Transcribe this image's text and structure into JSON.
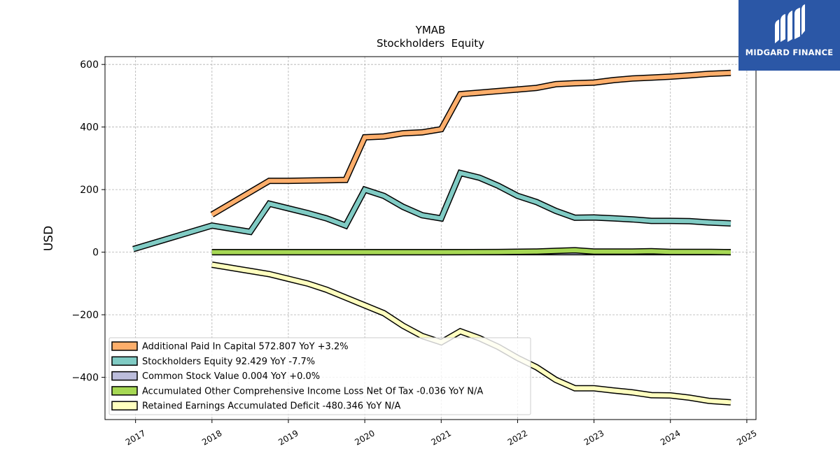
{
  "logo": {
    "text": "MIDGARD FINANCE",
    "color": "#2b57a6"
  },
  "chart_data": {
    "type": "line",
    "title": "YMAB",
    "subtitle": "Stockholders  Equity",
    "ylabel": "USD",
    "xlabel": "",
    "ylim": [
      -535,
      625
    ],
    "xlim": [
      2016.6,
      2025.12
    ],
    "x_ticks": [
      "2017",
      "2018",
      "2019",
      "2020",
      "2021",
      "2022",
      "2023",
      "2024",
      "2025"
    ],
    "y_ticks": [
      "600",
      "400",
      "200",
      "0",
      "−200",
      "−400"
    ],
    "grid": true,
    "legend_position": "lower-left",
    "series": [
      {
        "name": "Additional Paid In Capital  572.807 YoY +3.2%",
        "color": "#fdae6b",
        "x": [
          2018.0,
          2018.75,
          2019.0,
          2019.5,
          2019.75,
          2020.0,
          2020.25,
          2020.5,
          2020.75,
          2021.0,
          2021.25,
          2021.5,
          2021.75,
          2022.0,
          2022.25,
          2022.5,
          2022.75,
          2023.0,
          2023.25,
          2023.5,
          2023.75,
          2024.0,
          2024.25,
          2024.5,
          2024.79
        ],
        "y": [
          120,
          228,
          228,
          230,
          231,
          367,
          370,
          380,
          383,
          393,
          505,
          510,
          515,
          520,
          525,
          537,
          540,
          542,
          550,
          555,
          558,
          561,
          565,
          570,
          573
        ]
      },
      {
        "name": "Stockholders Equity  92.429 YoY -7.7%",
        "color": "#80cbc4",
        "x": [
          2016.97,
          2018.0,
          2018.5,
          2018.75,
          2019.0,
          2019.25,
          2019.5,
          2019.75,
          2020.0,
          2020.25,
          2020.5,
          2020.75,
          2021.0,
          2021.25,
          2021.5,
          2021.75,
          2022.0,
          2022.25,
          2022.5,
          2022.75,
          2023.0,
          2023.25,
          2023.5,
          2023.75,
          2024.0,
          2024.25,
          2024.5,
          2024.79
        ],
        "y": [
          10,
          85,
          65,
          155,
          140,
          125,
          108,
          85,
          200,
          180,
          145,
          118,
          108,
          253,
          238,
          212,
          180,
          160,
          132,
          110,
          111,
          108,
          105,
          100,
          100,
          99,
          95,
          92
        ]
      },
      {
        "name": "Common Stock Value  0.004 YoY +0.0%",
        "color": "#bcbddc",
        "x": [
          2018.0,
          2024.79
        ],
        "y": [
          0.004,
          0.004
        ]
      },
      {
        "name": "Accumulated Other Comprehensive Income Loss Net Of Tax  -0.036 YoY N/A",
        "color": "#a6d854",
        "x": [
          2018.0,
          2019.0,
          2020.0,
          2021.0,
          2021.75,
          2022.25,
          2022.5,
          2022.75,
          2023.0,
          2023.5,
          2023.75,
          2024.0,
          2024.5,
          2024.79
        ],
        "y": [
          0,
          0,
          0,
          0,
          0.5,
          2,
          4,
          6,
          2,
          2,
          3,
          1,
          1,
          0
        ]
      },
      {
        "name": "Retained Earnings Accumulated Deficit  -480.346 YoY N/A",
        "color": "#ffffbf",
        "x": [
          2018.0,
          2018.25,
          2018.5,
          2018.75,
          2019.0,
          2019.25,
          2019.5,
          2019.75,
          2020.0,
          2020.25,
          2020.5,
          2020.75,
          2021.0,
          2021.25,
          2021.5,
          2021.75,
          2022.0,
          2022.25,
          2022.5,
          2022.75,
          2023.0,
          2023.25,
          2023.5,
          2023.75,
          2024.0,
          2024.25,
          2024.5,
          2024.79
        ],
        "y": [
          -40,
          -50,
          -60,
          -70,
          -85,
          -100,
          -120,
          -145,
          -170,
          -195,
          -235,
          -268,
          -288,
          -253,
          -275,
          -303,
          -338,
          -368,
          -408,
          -435,
          -435,
          -442,
          -448,
          -457,
          -458,
          -465,
          -475,
          -480
        ]
      }
    ]
  }
}
